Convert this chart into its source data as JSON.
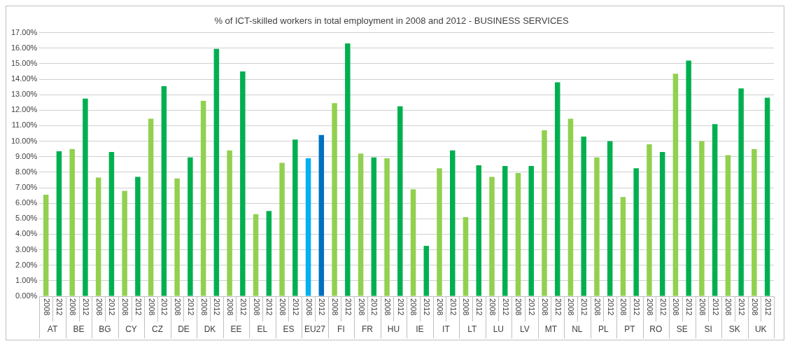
{
  "chart_data": {
    "type": "bar",
    "title": "% of ICT-skilled workers in total employment in 2008 and 2012 - BUSINESS SERVICES",
    "categories": [
      "AT",
      "BE",
      "BG",
      "CY",
      "CZ",
      "DE",
      "DK",
      "EE",
      "EL",
      "ES",
      "EU27",
      "FI",
      "FR",
      "HU",
      "IE",
      "IT",
      "LT",
      "LU",
      "LV",
      "MT",
      "NL",
      "PL",
      "PT",
      "RO",
      "SE",
      "SI",
      "SK",
      "UK"
    ],
    "series": [
      {
        "name": "2008",
        "colors": [
          "#92d050",
          "#92d050",
          "#92d050",
          "#92d050",
          "#92d050",
          "#92d050",
          "#92d050",
          "#92d050",
          "#92d050",
          "#92d050",
          "#00b0f0",
          "#92d050",
          "#92d050",
          "#92d050",
          "#92d050",
          "#92d050",
          "#92d050",
          "#92d050",
          "#92d050",
          "#92d050",
          "#92d050",
          "#92d050",
          "#92d050",
          "#92d050",
          "#92d050",
          "#92d050",
          "#92d050",
          "#92d050"
        ],
        "values": [
          6.55,
          9.5,
          7.65,
          6.8,
          11.45,
          7.6,
          12.6,
          9.4,
          5.3,
          8.6,
          8.9,
          12.45,
          9.2,
          8.9,
          6.9,
          8.25,
          5.1,
          7.7,
          7.95,
          10.7,
          11.45,
          8.95,
          6.4,
          9.8,
          14.35,
          10.0,
          9.1,
          9.5
        ]
      },
      {
        "name": "2012",
        "colors": [
          "#00b050",
          "#00b050",
          "#00b050",
          "#00b050",
          "#00b050",
          "#00b050",
          "#00b050",
          "#00b050",
          "#00b050",
          "#00b050",
          "#0070c0",
          "#00b050",
          "#00b050",
          "#00b050",
          "#00b050",
          "#00b050",
          "#00b050",
          "#00b050",
          "#00b050",
          "#00b050",
          "#00b050",
          "#00b050",
          "#00b050",
          "#00b050",
          "#00b050",
          "#00b050",
          "#00b050",
          "#00b050"
        ],
        "values": [
          9.35,
          12.75,
          9.3,
          7.7,
          13.55,
          8.95,
          15.95,
          14.5,
          5.5,
          10.1,
          10.4,
          16.3,
          8.95,
          12.25,
          3.25,
          9.4,
          8.45,
          8.4,
          8.4,
          13.8,
          10.3,
          10.0,
          8.25,
          9.3,
          15.2,
          11.1,
          13.4,
          12.8
        ]
      }
    ],
    "ylim": [
      0,
      17
    ],
    "yticks": [
      {
        "value": 0,
        "label": "0.00%"
      },
      {
        "value": 1,
        "label": "1.00%"
      },
      {
        "value": 2,
        "label": "2.00%"
      },
      {
        "value": 3,
        "label": "3.00%"
      },
      {
        "value": 4,
        "label": "4.00%"
      },
      {
        "value": 5,
        "label": "5.00%"
      },
      {
        "value": 6,
        "label": "6.00%"
      },
      {
        "value": 7,
        "label": "7.00%"
      },
      {
        "value": 8,
        "label": "8.00%"
      },
      {
        "value": 9,
        "label": "9.00%"
      },
      {
        "value": 10,
        "label": "10.00%"
      },
      {
        "value": 11,
        "label": "11.00%"
      },
      {
        "value": 12,
        "label": "12.00%"
      },
      {
        "value": 13,
        "label": "13.00%"
      },
      {
        "value": 14,
        "label": "14.00%"
      },
      {
        "value": 15,
        "label": "15.00%"
      },
      {
        "value": 16,
        "label": "16.00%"
      },
      {
        "value": 17,
        "label": "17.00%"
      }
    ],
    "grid": "y"
  }
}
